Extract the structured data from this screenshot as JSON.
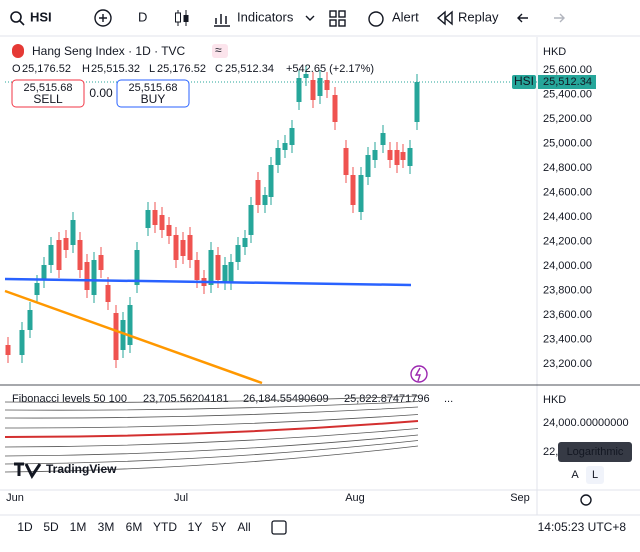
{
  "toolbar": {
    "symbol": "HSI",
    "interval": "D",
    "indicators": "Indicators",
    "alert": "Alert",
    "replay": "Replay"
  },
  "legend": {
    "title": "Hang Seng Index · 1D · TVC",
    "open_label": "O",
    "open": "25,176.52",
    "high_label": "H",
    "high": "25,515.32",
    "low_label": "L",
    "low": "25,176.52",
    "close_label": "C",
    "close": "25,512.34",
    "change": "+542.65 (+2.17%)"
  },
  "trade": {
    "sell_price": "25,515.68",
    "sell": "SELL",
    "spread": "0.00",
    "buy_price": "25,515.68",
    "buy": "BUY"
  },
  "price_axis": {
    "currency": "HKD",
    "labels": [
      "25,600.00",
      "25,400.00",
      "25,200.00",
      "25,000.00",
      "24,800.00",
      "24,600.00",
      "24,400.00",
      "24,200.00",
      "24,000.00",
      "23,800.00",
      "23,600.00",
      "23,400.00",
      "23,200.00"
    ],
    "symbol_tag": "HSI",
    "last_price": "25,512.34"
  },
  "indicator": {
    "name": "Fibonacci levels 50 100",
    "values": [
      "23,705.56204181",
      "26,184.55490609",
      "25,822.87471796"
    ],
    "more": "...",
    "currency": "HKD",
    "axis_label": "24,000.00000000",
    "axis_partial": "22,",
    "tooltip": "Logarithmic",
    "auto": "A",
    "log": "L"
  },
  "logo": "TradingView",
  "time_axis": [
    "Jun",
    "Jul",
    "Aug",
    "Sep"
  ],
  "ranges": [
    "1D",
    "5D",
    "1M",
    "3M",
    "6M",
    "YTD",
    "1Y",
    "5Y",
    "All"
  ],
  "clock": "14:05:23 UTC+8"
}
